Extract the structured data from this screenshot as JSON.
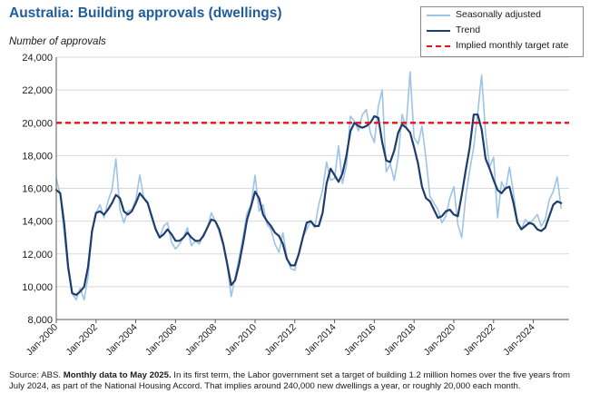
{
  "chart_data": {
    "type": "line",
    "title": "Australia: Building approvals (dwellings)",
    "ylabel": "Number of approvals",
    "xlabel": "",
    "ylim": [
      8000,
      24000
    ],
    "yticks": [
      8000,
      10000,
      12000,
      14000,
      16000,
      18000,
      20000,
      22000,
      24000
    ],
    "ytick_labels": [
      "8,000",
      "10,000",
      "12,000",
      "14,000",
      "16,000",
      "18,000",
      "20,000",
      "22,000",
      "24,000"
    ],
    "xlim": [
      2000.0,
      2025.8
    ],
    "xticks": [
      2000,
      2002,
      2004,
      2006,
      2008,
      2010,
      2012,
      2014,
      2016,
      2018,
      2020,
      2022,
      2024
    ],
    "xtick_labels": [
      "Jan-2000",
      "Jan-2002",
      "Jan-2004",
      "Jan-2006",
      "Jan-2008",
      "Jan-2010",
      "Jan-2012",
      "Jan-2014",
      "Jan-2016",
      "Jan-2018",
      "Jan-2020",
      "Jan-2022",
      "Jan-2024"
    ],
    "grid": true,
    "legend_position": "top-right",
    "series": [
      {
        "name": "Seasonally adjusted",
        "color": "#9dc3e6",
        "x": [
          2000.0,
          2000.2,
          2000.4,
          2000.6,
          2000.8,
          2001.0,
          2001.2,
          2001.4,
          2001.6,
          2001.8,
          2002.0,
          2002.2,
          2002.4,
          2002.6,
          2002.8,
          2003.0,
          2003.2,
          2003.4,
          2003.6,
          2003.8,
          2004.0,
          2004.2,
          2004.4,
          2004.6,
          2004.8,
          2005.0,
          2005.2,
          2005.4,
          2005.6,
          2005.8,
          2006.0,
          2006.2,
          2006.4,
          2006.6,
          2006.8,
          2007.0,
          2007.2,
          2007.4,
          2007.6,
          2007.8,
          2008.0,
          2008.2,
          2008.4,
          2008.6,
          2008.8,
          2009.0,
          2009.2,
          2009.4,
          2009.6,
          2009.8,
          2010.0,
          2010.2,
          2010.4,
          2010.6,
          2010.8,
          2011.0,
          2011.2,
          2011.4,
          2011.6,
          2011.8,
          2012.0,
          2012.2,
          2012.4,
          2012.6,
          2012.8,
          2013.0,
          2013.2,
          2013.4,
          2013.6,
          2013.8,
          2014.0,
          2014.2,
          2014.4,
          2014.6,
          2014.8,
          2015.0,
          2015.2,
          2015.4,
          2015.6,
          2015.8,
          2016.0,
          2016.2,
          2016.4,
          2016.6,
          2016.8,
          2017.0,
          2017.2,
          2017.4,
          2017.6,
          2017.8,
          2018.0,
          2018.2,
          2018.4,
          2018.6,
          2018.8,
          2019.0,
          2019.2,
          2019.4,
          2019.6,
          2019.8,
          2020.0,
          2020.2,
          2020.4,
          2020.6,
          2020.8,
          2021.0,
          2021.2,
          2021.4,
          2021.6,
          2021.8,
          2022.0,
          2022.2,
          2022.4,
          2022.6,
          2022.8,
          2023.0,
          2023.2,
          2023.4,
          2023.6,
          2023.8,
          2024.0,
          2024.2,
          2024.4,
          2024.6,
          2024.8,
          2025.0,
          2025.2,
          2025.4
        ],
        "values": [
          16600,
          15600,
          13200,
          11000,
          9600,
          9200,
          9900,
          9200,
          10600,
          13300,
          14500,
          15000,
          14200,
          15200,
          15900,
          17800,
          14700,
          13900,
          14600,
          14700,
          15300,
          16800,
          15400,
          15200,
          14200,
          13600,
          13000,
          13700,
          13900,
          12700,
          12300,
          12600,
          13000,
          13600,
          12500,
          12800,
          12600,
          13200,
          13600,
          14500,
          14000,
          13300,
          12500,
          11300,
          9400,
          10600,
          11800,
          13100,
          14500,
          15000,
          16800,
          14600,
          15000,
          13800,
          13500,
          12600,
          12100,
          13300,
          11800,
          11100,
          11000,
          12100,
          13000,
          13500,
          14000,
          13600,
          15000,
          15900,
          17600,
          16500,
          16600,
          18600,
          16300,
          17400,
          20400,
          20100,
          19500,
          20500,
          20800,
          19400,
          18800,
          21000,
          22000,
          17000,
          17500,
          16500,
          17900,
          20500,
          19700,
          23100,
          19100,
          18700,
          19800,
          17800,
          15500,
          15100,
          14700,
          13900,
          14300,
          15400,
          16100,
          13800,
          13000,
          15500,
          17100,
          18500,
          20600,
          22900,
          19300,
          17300,
          17900,
          14200,
          16400,
          15900,
          17300,
          15700,
          13900,
          13500,
          14100,
          13800,
          14100,
          14400,
          13700,
          14100,
          15300,
          15800,
          16700,
          14800
        ],
        "marker": false
      },
      {
        "name": "Trend",
        "color": "#1f3d6b",
        "x": [
          2000.0,
          2000.2,
          2000.4,
          2000.6,
          2000.8,
          2001.0,
          2001.2,
          2001.4,
          2001.6,
          2001.8,
          2002.0,
          2002.2,
          2002.4,
          2002.6,
          2002.8,
          2003.0,
          2003.2,
          2003.4,
          2003.6,
          2003.8,
          2004.0,
          2004.2,
          2004.4,
          2004.6,
          2004.8,
          2005.0,
          2005.2,
          2005.4,
          2005.6,
          2005.8,
          2006.0,
          2006.2,
          2006.4,
          2006.6,
          2006.8,
          2007.0,
          2007.2,
          2007.4,
          2007.6,
          2007.8,
          2008.0,
          2008.2,
          2008.4,
          2008.6,
          2008.8,
          2009.0,
          2009.2,
          2009.4,
          2009.6,
          2009.8,
          2010.0,
          2010.2,
          2010.4,
          2010.6,
          2010.8,
          2011.0,
          2011.2,
          2011.4,
          2011.6,
          2011.8,
          2012.0,
          2012.2,
          2012.4,
          2012.6,
          2012.8,
          2013.0,
          2013.2,
          2013.4,
          2013.6,
          2013.8,
          2014.0,
          2014.2,
          2014.4,
          2014.6,
          2014.8,
          2015.0,
          2015.2,
          2015.4,
          2015.6,
          2015.8,
          2016.0,
          2016.2,
          2016.4,
          2016.6,
          2016.8,
          2017.0,
          2017.2,
          2017.4,
          2017.6,
          2017.8,
          2018.0,
          2018.2,
          2018.4,
          2018.6,
          2018.8,
          2019.0,
          2019.2,
          2019.4,
          2019.6,
          2019.8,
          2020.0,
          2020.2,
          2020.4,
          2020.6,
          2020.8,
          2021.0,
          2021.2,
          2021.4,
          2021.6,
          2021.8,
          2022.0,
          2022.2,
          2022.4,
          2022.6,
          2022.8,
          2023.0,
          2023.2,
          2023.4,
          2023.6,
          2023.8,
          2024.0,
          2024.2,
          2024.4,
          2024.6,
          2024.8,
          2025.0,
          2025.2,
          2025.4
        ],
        "values": [
          15900,
          15700,
          13800,
          11200,
          9600,
          9500,
          9700,
          10000,
          11200,
          13400,
          14500,
          14600,
          14400,
          14700,
          15100,
          15600,
          15400,
          14600,
          14400,
          14600,
          15100,
          15700,
          15400,
          15100,
          14300,
          13500,
          13000,
          13200,
          13500,
          13200,
          12800,
          12800,
          13000,
          13300,
          13000,
          12800,
          12800,
          13100,
          13600,
          14100,
          14000,
          13500,
          12600,
          11400,
          10100,
          10400,
          11400,
          12700,
          14100,
          14900,
          15800,
          15400,
          14400,
          14000,
          13700,
          13300,
          13100,
          12600,
          11700,
          11300,
          11300,
          12000,
          13000,
          13900,
          14000,
          13700,
          13700,
          14500,
          16300,
          17200,
          16800,
          16400,
          16900,
          18000,
          19500,
          20000,
          19800,
          19700,
          19800,
          20000,
          20400,
          20300,
          18800,
          17700,
          17600,
          18300,
          19400,
          19900,
          19700,
          19400,
          18500,
          17500,
          16100,
          15400,
          15200,
          14700,
          14200,
          14300,
          14600,
          14700,
          14400,
          14300,
          15600,
          17100,
          18500,
          20500,
          20500,
          19600,
          17800,
          17200,
          16500,
          15900,
          15700,
          16000,
          16100,
          15100,
          13900,
          13500,
          13700,
          13900,
          13800,
          13500,
          13400,
          13600,
          14300,
          15000,
          15200,
          15100
        ],
        "marker": false
      },
      {
        "name": "Implied monthly target rate",
        "color": "#e0141e",
        "x": [
          2000.0,
          2025.8
        ],
        "values": [
          20000,
          20000
        ],
        "marker": false,
        "dashed": true
      }
    ]
  },
  "source": {
    "prefix": "Source: ABS.",
    "highlight": "Monthly data to May 2025.",
    "text": "In its first term, the Labor government set a target of building 1.2 million homes over the five years from July 2024, as part of the National Housing Accord. That implies around 240,000 new dwellings a year, or roughly 20,000 each month."
  }
}
